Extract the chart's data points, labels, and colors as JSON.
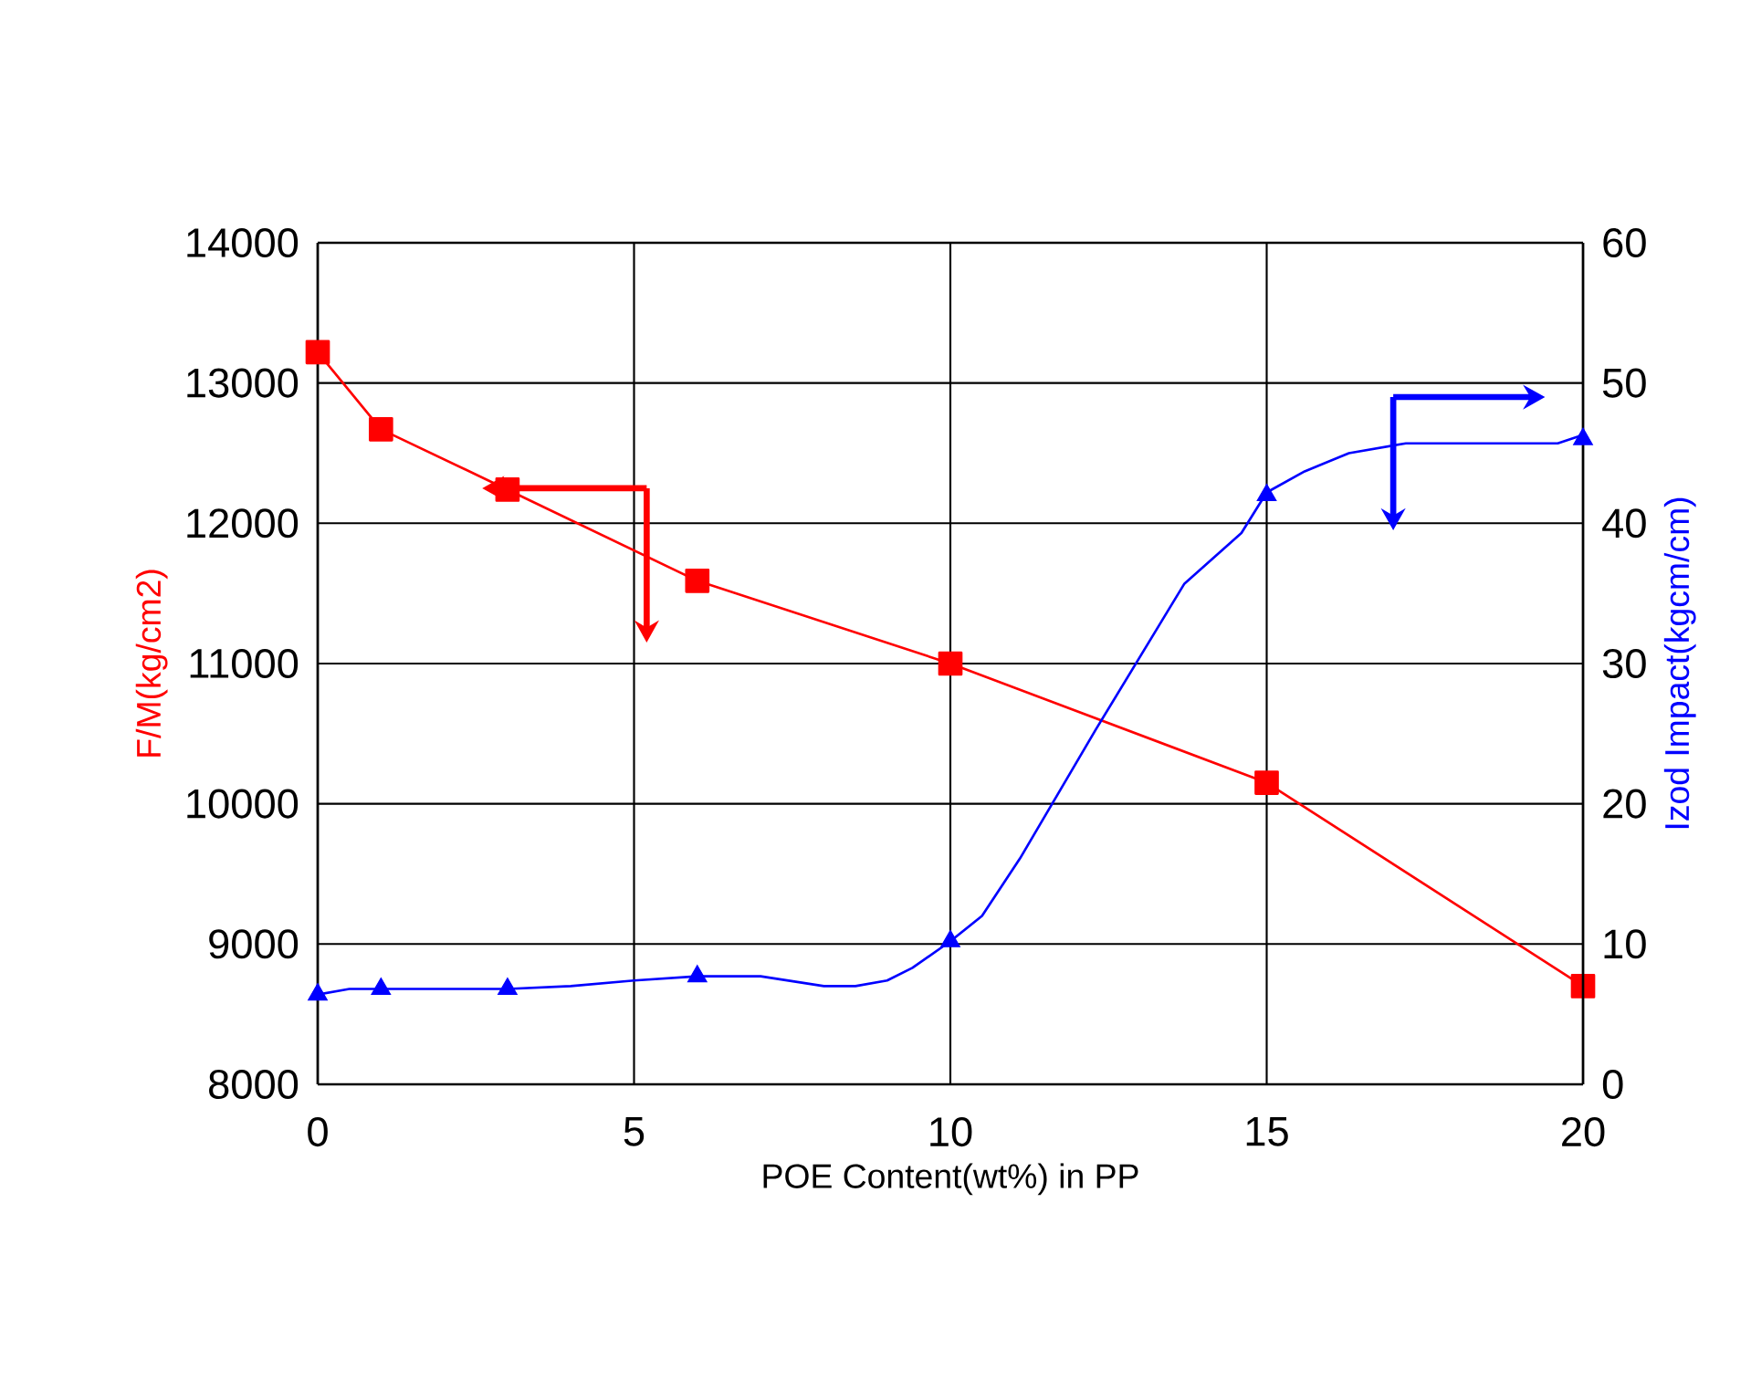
{
  "chart_data": {
    "type": "line",
    "xlabel": "POE Content(wt%) in PP",
    "ylabel": "F/M(kg/cm2)",
    "y2label": "Izod Impact(kgcm/cm)",
    "x": [
      0,
      1,
      3,
      6,
      10,
      15,
      20
    ],
    "xlim": [
      0,
      20
    ],
    "xticks": [
      0,
      5,
      10,
      15,
      20
    ],
    "ylim": [
      8000,
      14000
    ],
    "yticks": [
      8000,
      9000,
      10000,
      11000,
      12000,
      13000,
      14000
    ],
    "y2lim": [
      0,
      60
    ],
    "y2ticks": [
      0,
      10,
      20,
      30,
      40,
      50,
      60
    ],
    "grid": true,
    "series": [
      {
        "color": "#ff0000",
        "marker": "square",
        "values": [
          13220,
          12670,
          12240,
          11590,
          11000,
          10150,
          8700
        ]
      },
      {
        "axis": "y2",
        "color": "#0000ff",
        "marker": "none",
        "x": [
          0,
          0.5,
          1,
          3,
          4,
          5,
          6,
          7,
          8,
          8.5,
          9,
          9.4,
          10,
          10.5,
          11.1,
          12.3,
          13.7,
          14.6,
          15,
          15.6,
          16.3,
          17.2,
          19.6,
          20
        ],
        "values": [
          6.4,
          6.8,
          6.8,
          6.8,
          7.0,
          7.4,
          7.7,
          7.7,
          7.0,
          7.0,
          7.4,
          8.3,
          10.2,
          12.0,
          16.1,
          25.3,
          35.7,
          39.3,
          42.2,
          43.7,
          45.0,
          45.7,
          45.7,
          46.3
        ]
      },
      {
        "type": "scatter",
        "axis": "y2",
        "color": "#0000ff",
        "marker": "triangle",
        "values": [
          6.4,
          6.8,
          6.8,
          7.7,
          10.2,
          42,
          46
        ]
      }
    ]
  }
}
